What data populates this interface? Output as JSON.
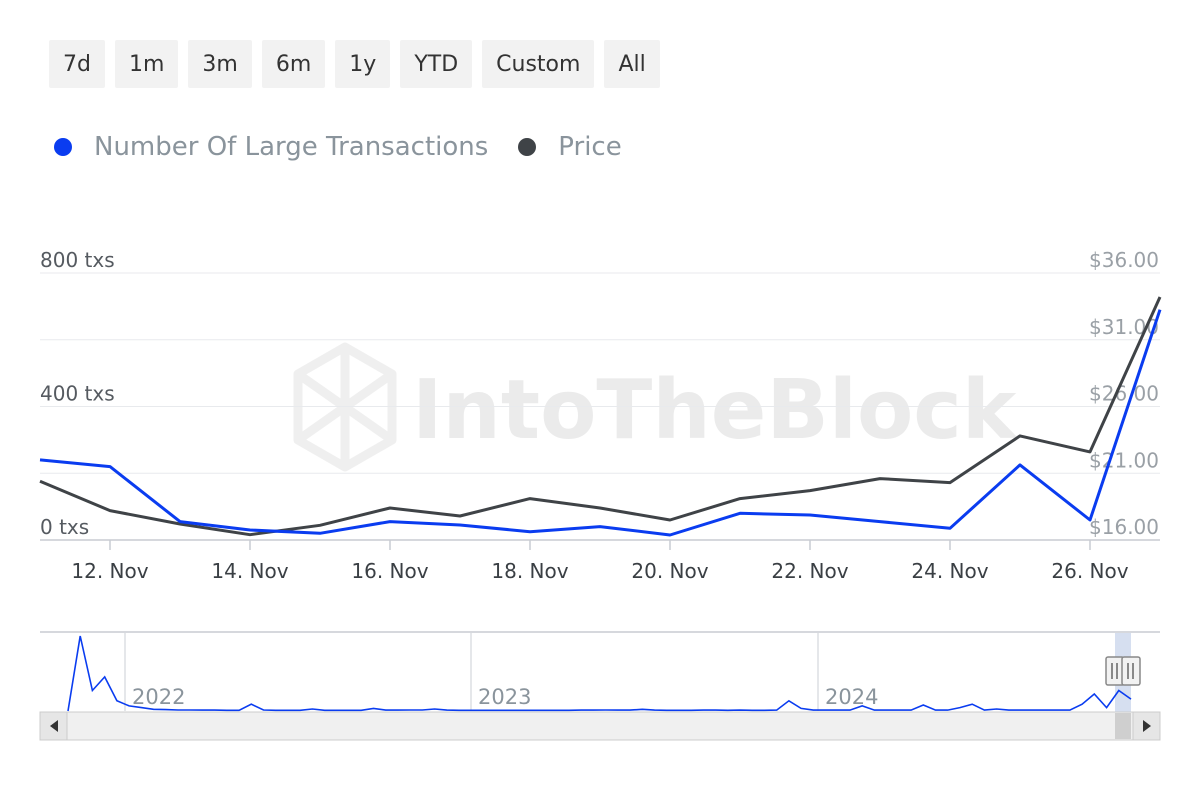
{
  "range_buttons": [
    "7d",
    "1m",
    "3m",
    "6m",
    "1y",
    "YTD",
    "Custom",
    "All"
  ],
  "legend": [
    {
      "label": "Number Of Large Transactions",
      "color": "#0a3cf0"
    },
    {
      "label": "Price",
      "color": "#3f4347"
    }
  ],
  "watermark": "IntoTheBlock",
  "chart_data": {
    "type": "line",
    "left_axis": {
      "ticks": [
        0,
        400,
        800
      ],
      "tick_labels": [
        "0 txs",
        "400 txs",
        "800 txs"
      ],
      "range": [
        0,
        800
      ]
    },
    "right_axis": {
      "ticks": [
        16,
        21,
        26,
        31,
        36
      ],
      "tick_labels": [
        "$16.00",
        "$21.00",
        "$26.00",
        "$31.00",
        "$36.00"
      ],
      "range": [
        16,
        36
      ]
    },
    "x_ticks": [
      "12. Nov",
      "14. Nov",
      "16. Nov",
      "18. Nov",
      "20. Nov",
      "22. Nov",
      "24. Nov",
      "26. Nov"
    ],
    "x_dates": [
      "11. Nov",
      "12. Nov",
      "13. Nov",
      "14. Nov",
      "15. Nov",
      "16. Nov",
      "17. Nov",
      "18. Nov",
      "19. Nov",
      "20. Nov",
      "21. Nov",
      "22. Nov",
      "23. Nov",
      "24. Nov",
      "25. Nov",
      "26. Nov",
      "27. Nov"
    ],
    "series": [
      {
        "name": "Number Of Large Transactions",
        "axis": "left",
        "color": "#0a3cf0",
        "values": [
          240,
          220,
          55,
          30,
          20,
          55,
          45,
          25,
          40,
          15,
          80,
          75,
          55,
          35,
          225,
          60,
          690
        ]
      },
      {
        "name": "Price",
        "axis": "right",
        "color": "#3f4347",
        "values": [
          20.4,
          18.2,
          17.2,
          16.4,
          17.1,
          18.4,
          17.8,
          19.1,
          18.4,
          17.5,
          19.1,
          19.7,
          20.6,
          20.3,
          23.8,
          22.6,
          34.2
        ]
      }
    ],
    "grid": true,
    "navigator": {
      "year_labels": [
        "2022",
        "2023",
        "2024"
      ],
      "values": [
        0,
        440,
        120,
        200,
        60,
        30,
        20,
        10,
        8,
        6,
        6,
        5,
        5,
        4,
        4,
        40,
        6,
        4,
        4,
        4,
        12,
        4,
        4,
        4,
        4,
        15,
        5,
        5,
        6,
        6,
        12,
        5,
        4,
        4,
        4,
        4,
        4,
        4,
        4,
        4,
        4,
        4,
        5,
        5,
        6,
        5,
        5,
        10,
        5,
        4,
        4,
        4,
        5,
        5,
        4,
        5,
        4,
        4,
        5,
        60,
        15,
        5,
        5,
        5,
        5,
        30,
        5,
        5,
        5,
        5,
        35,
        5,
        5,
        20,
        40,
        5,
        12,
        5,
        5,
        5,
        5,
        5,
        5,
        40,
        100,
        20,
        120,
        70
      ]
    }
  }
}
